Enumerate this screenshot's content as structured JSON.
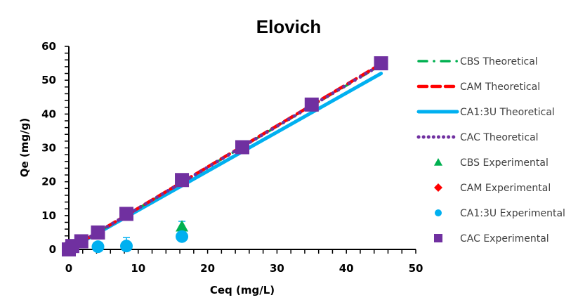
{
  "chart_data": {
    "type": "scatter",
    "title": "Elovich",
    "xlabel": "Ceq (mg/L)",
    "ylabel": "Qe (mg/g)",
    "xlim": [
      0,
      50
    ],
    "ylim": [
      0,
      60
    ],
    "xticks": [
      "0",
      "10",
      "20",
      "30",
      "40",
      "50"
    ],
    "yticks": [
      "0",
      "10",
      "20",
      "30",
      "40",
      "50",
      "60"
    ],
    "grid": false,
    "legend_position": "right",
    "series": [
      {
        "name": "CBS Theoretical",
        "kind": "line",
        "style": "dash-dot",
        "color": "#00B050",
        "x": [
          0,
          45
        ],
        "y": [
          0,
          54.5
        ]
      },
      {
        "name": "CAM Theoretical",
        "kind": "line",
        "style": "dash",
        "color": "#FF0000",
        "x": [
          0,
          45
        ],
        "y": [
          0,
          54.8
        ]
      },
      {
        "name": "CA1:3U Theoretical",
        "kind": "line",
        "style": "solid",
        "color": "#00B0F0",
        "x": [
          0,
          45
        ],
        "y": [
          0,
          52
        ]
      },
      {
        "name": "CAC Theoretical",
        "kind": "line",
        "style": "dot",
        "color": "#7030A0",
        "x": [
          0,
          45
        ],
        "y": [
          0,
          54.6
        ]
      },
      {
        "name": "CBS Experimental",
        "kind": "marker",
        "marker": "triangle",
        "color": "#00B050",
        "x": [
          16.3
        ],
        "y": [
          6.8
        ],
        "err": [
          1.5
        ]
      },
      {
        "name": "CAM Experimental",
        "kind": "marker",
        "marker": "diamond",
        "color": "#FF0000",
        "x": [
          0,
          0.5,
          1.8,
          4.2,
          8.3,
          16.3,
          25,
          35,
          45
        ],
        "y": [
          0,
          1,
          2.4,
          5,
          10.2,
          19.8,
          30,
          42.5,
          54.8
        ]
      },
      {
        "name": "CA1:3U Experimental",
        "kind": "marker",
        "marker": "circle",
        "color": "#00B0F0",
        "x": [
          4.2,
          8.3,
          16.3
        ],
        "y": [
          0.8,
          1.0,
          3.8
        ],
        "err": [
          0,
          2.5,
          0
        ]
      },
      {
        "name": "CAC Experimental",
        "kind": "marker",
        "marker": "square",
        "color": "#7030A0",
        "x": [
          0,
          0.5,
          1.8,
          4.2,
          8.3,
          16.3,
          25,
          35,
          45
        ],
        "y": [
          0,
          1,
          2.4,
          5,
          10.5,
          20.5,
          30.2,
          42.8,
          55
        ]
      }
    ]
  }
}
